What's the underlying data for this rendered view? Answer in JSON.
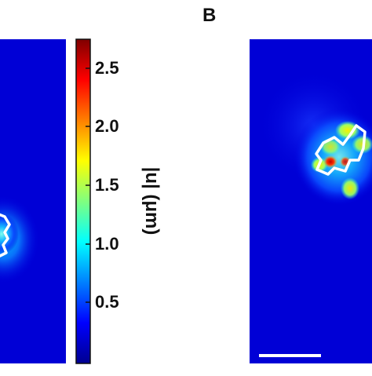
{
  "panels": [
    {
      "label": ""
    },
    {
      "label": "B"
    }
  ],
  "colorbar": {
    "label": "|u| (μm)",
    "ticks": [
      "2.5",
      "2.0",
      "1.5",
      "1.0",
      "0.5"
    ],
    "max": 2.75,
    "colormap": "jet",
    "colors": [
      "#00008f",
      "#0000ff",
      "#00ffff",
      "#ffff00",
      "#ff0000",
      "#800000"
    ]
  },
  "scale_bar": "present"
}
